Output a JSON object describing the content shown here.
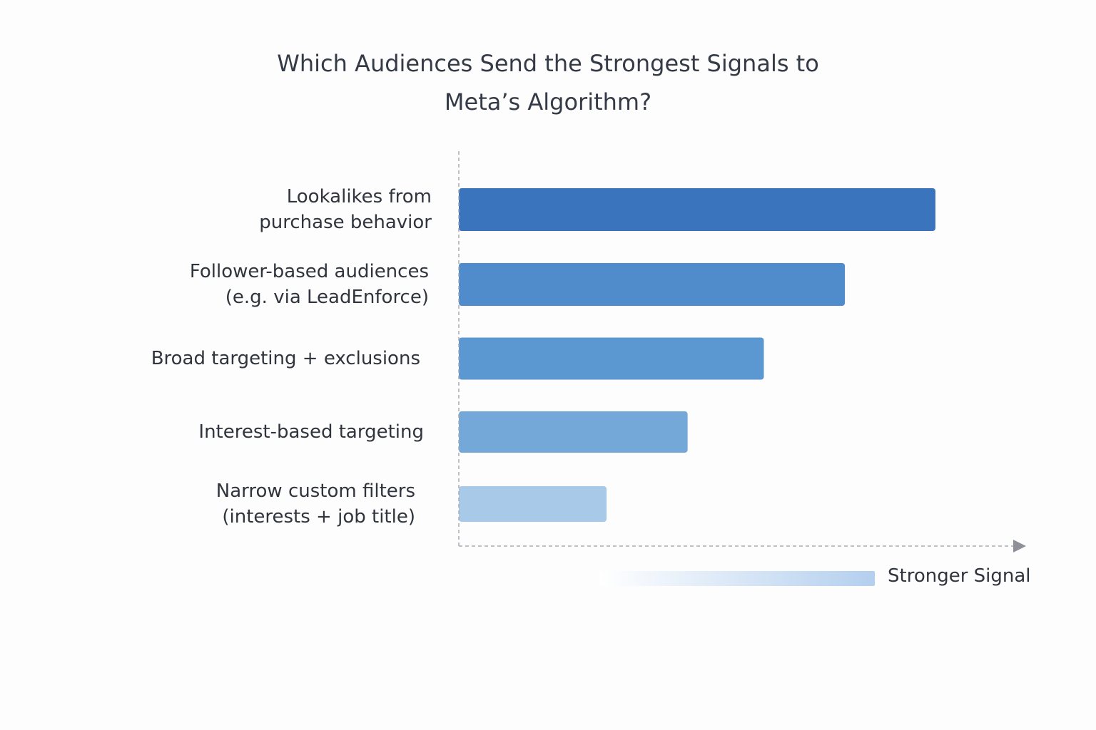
{
  "chart_data": {
    "type": "bar",
    "orientation": "horizontal",
    "title_lines": [
      "Which Audiences Send the Strongest Signals to",
      "Meta’s Algorithm?"
    ],
    "categories": [
      [
        "Lookalikes from",
        "purchase behavior"
      ],
      [
        "Follower-based audiences",
        "(e.g. via LeadEnforce)"
      ],
      [
        "Broad targeting + exclusions"
      ],
      [
        "Interest-based targeting"
      ],
      [
        "Narrow custom filters",
        "(interests + job title)"
      ]
    ],
    "values": [
      100,
      81,
      64,
      48,
      31
    ],
    "xlim": [
      0,
      100
    ],
    "grid": false,
    "colors": [
      "#3a74bd",
      "#508bcb",
      "#5b97d0",
      "#74a8d8",
      "#a8c9e8"
    ],
    "axis_label": "Stronger Signal",
    "legend_gradient": [
      "#ffffff",
      "#b3cfee"
    ]
  }
}
